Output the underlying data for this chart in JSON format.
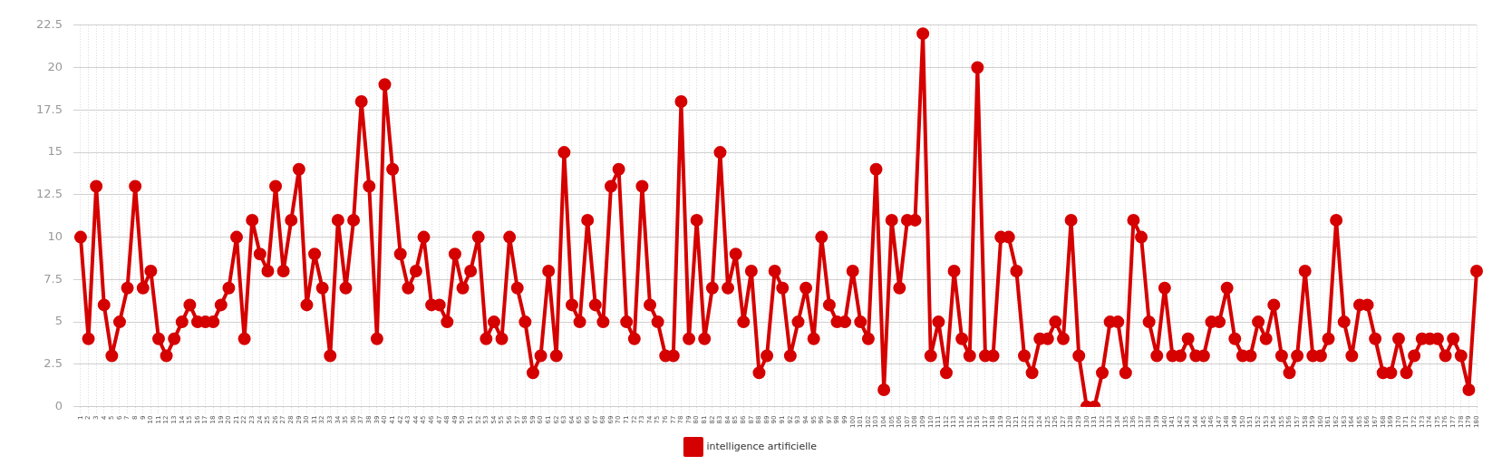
{
  "chart_data": {
    "type": "line",
    "categories": [
      "1",
      "2",
      "3",
      "4",
      "5",
      "6",
      "7",
      "8",
      "9",
      "10",
      "11",
      "12",
      "13",
      "14",
      "15",
      "16",
      "17",
      "18",
      "19",
      "20",
      "21",
      "22",
      "23",
      "24",
      "25",
      "26",
      "27",
      "28",
      "29",
      "30",
      "31",
      "32",
      "33",
      "34",
      "35",
      "36",
      "37",
      "38",
      "39",
      "40",
      "41",
      "42",
      "43",
      "44",
      "45",
      "46",
      "47",
      "48",
      "49",
      "50",
      "51",
      "52",
      "53",
      "54",
      "55",
      "56",
      "57",
      "58",
      "59",
      "60",
      "61",
      "62",
      "63",
      "64",
      "65",
      "66",
      "67",
      "68",
      "69",
      "70",
      "71",
      "72",
      "73",
      "74",
      "75",
      "76",
      "77",
      "78",
      "79",
      "80",
      "81",
      "82",
      "83",
      "84",
      "85",
      "86",
      "87",
      "88",
      "89",
      "90",
      "91",
      "92",
      "93",
      "94",
      "95",
      "96",
      "97",
      "98",
      "99",
      "100",
      "101",
      "102",
      "103",
      "104",
      "105",
      "106",
      "107",
      "108",
      "109",
      "110",
      "111",
      "112",
      "113",
      "114",
      "115",
      "116",
      "117",
      "118",
      "119",
      "120",
      "121",
      "122",
      "123",
      "124",
      "125",
      "126",
      "127",
      "128",
      "129",
      "130",
      "131",
      "132",
      "133",
      "134",
      "135",
      "136",
      "137",
      "138",
      "139",
      "140",
      "141",
      "142",
      "143",
      "144",
      "145",
      "146",
      "147",
      "148",
      "149",
      "150",
      "151",
      "152",
      "153",
      "154",
      "155",
      "156",
      "157",
      "158",
      "159",
      "160",
      "161",
      "162",
      "163",
      "164",
      "165",
      "166",
      "167",
      "168",
      "169",
      "170",
      "171",
      "172",
      "173",
      "174",
      "175",
      "176",
      "177",
      "178",
      "179",
      "180"
    ],
    "series": [
      {
        "name": "intelligence artificielle",
        "color": "#d50000",
        "values": [
          10,
          4,
          13,
          6,
          3,
          5,
          7,
          13,
          7,
          8,
          4,
          3,
          4,
          5,
          6,
          5,
          5,
          5,
          6,
          7,
          10,
          4,
          11,
          9,
          8,
          13,
          8,
          11,
          14,
          6,
          9,
          7,
          3,
          11,
          7,
          11,
          18,
          13,
          4,
          19,
          14,
          9,
          7,
          8,
          10,
          6,
          6,
          5,
          9,
          7,
          8,
          10,
          4,
          5,
          4,
          10,
          7,
          5,
          2,
          3,
          8,
          3,
          15,
          6,
          5,
          11,
          6,
          5,
          13,
          14,
          5,
          4,
          13,
          6,
          5,
          3,
          3,
          18,
          4,
          11,
          4,
          7,
          15,
          7,
          9,
          5,
          8,
          2,
          3,
          8,
          7,
          3,
          5,
          7,
          4,
          10,
          6,
          5,
          5,
          8,
          5,
          4,
          14,
          1,
          11,
          7,
          11,
          11,
          22,
          3,
          5,
          2,
          8,
          4,
          3,
          20,
          3,
          3,
          10,
          10,
          8,
          3,
          2,
          4,
          4,
          5,
          4,
          11,
          3,
          0,
          0,
          2,
          5,
          5,
          2,
          11,
          10,
          5,
          3,
          7,
          3,
          3,
          4,
          3,
          3,
          5,
          5,
          7,
          4,
          3,
          3,
          5,
          4,
          6,
          3,
          2,
          3,
          8,
          3,
          3,
          4,
          11,
          5,
          3,
          6,
          6,
          4,
          2,
          2,
          4,
          2,
          3,
          4,
          4,
          4,
          3,
          4,
          3,
          1,
          8
        ]
      }
    ],
    "ylim": [
      0,
      22.5
    ],
    "yticks": [
      0,
      2.5,
      5,
      7.5,
      10,
      12.5,
      15,
      17.5,
      20,
      22.5
    ],
    "grid": true,
    "legend": "bottom",
    "marker": "circle",
    "line_style": "solid"
  }
}
